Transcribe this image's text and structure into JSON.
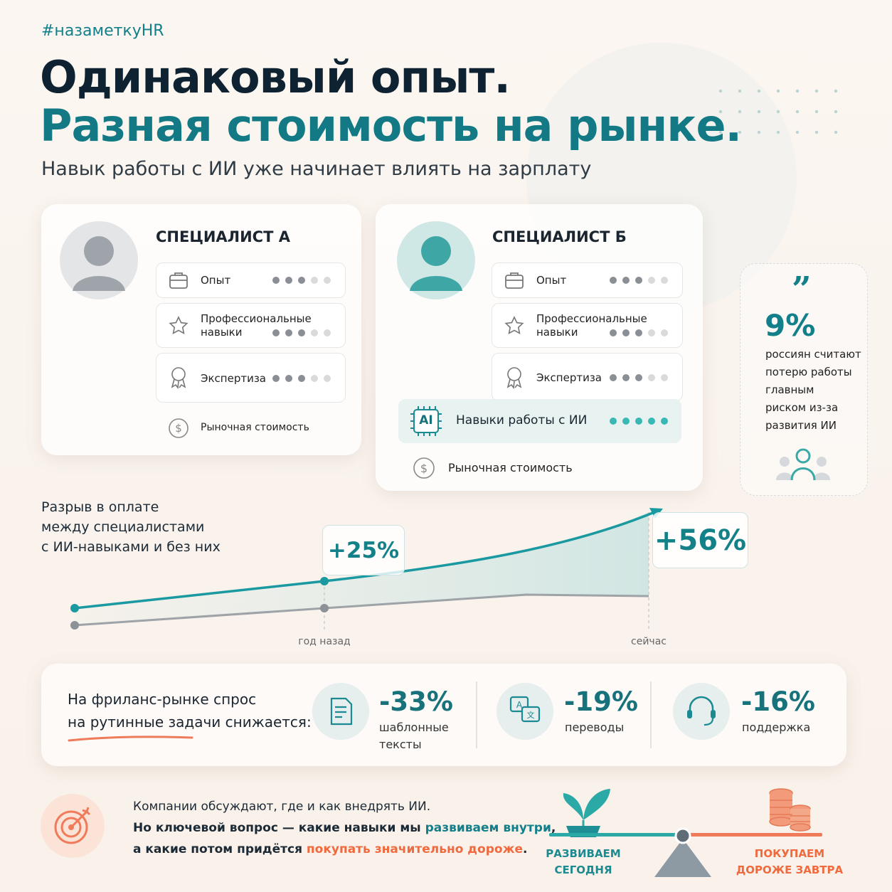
{
  "header": {
    "hashtag": "#назаметкуHR",
    "title_line1": "Одинаковый опыт.",
    "title_line2": "Разная стоимость на рынке.",
    "subtitle": "Навык работы с ИИ уже начинает влиять на зарплату"
  },
  "dot_scale": 5,
  "cards": [
    {
      "title": "СПЕЦИАЛИСТ А",
      "skills": [
        {
          "label": "Опыт",
          "level": 3
        },
        {
          "label": "Профессиональные навыки",
          "level": 3
        },
        {
          "label": "Экспертиза",
          "level": 3
        }
      ],
      "market": "Рыночная стоимость"
    },
    {
      "title": "СПЕЦИАЛИСТ Б",
      "skills": [
        {
          "label": "Опыт",
          "level": 3
        },
        {
          "label": "Профессиональные навыки",
          "level": 3
        },
        {
          "label": "Экспертиза",
          "level": 3
        }
      ],
      "ai_skill": {
        "icon": "AI",
        "label": "Навыки работы с ИИ",
        "level": 5
      },
      "market": "Рыночная стоимость"
    }
  ],
  "quote": {
    "value": "9%",
    "lines": [
      "россиян считают",
      "потерю работы",
      "главным",
      "риском из-за",
      "развития ИИ"
    ]
  },
  "gap": {
    "caption": [
      "Разрыв в оплате",
      "между специалистами",
      "с ИИ-навыками и без них"
    ],
    "points": [
      {
        "label": "+25%",
        "x_label": "год назад"
      },
      {
        "label": "+56%",
        "x_label": "сейчас"
      }
    ]
  },
  "freelance": {
    "caption": [
      "На фриланс-рынке спрос",
      "на рутинные задачи снижается:"
    ],
    "items": [
      {
        "value": "-33%",
        "label": [
          "шаблонные",
          "тексты"
        ]
      },
      {
        "value": "-19%",
        "label": [
          "переводы"
        ]
      },
      {
        "value": "-16%",
        "label": [
          "поддержка"
        ]
      }
    ]
  },
  "footer": {
    "line1": "Компании обсуждают, где и как внедрять ИИ.",
    "line2": [
      "Но ключевой вопрос — какие навыки мы ",
      "развиваем внутри",
      ","
    ],
    "line3": [
      "а какие потом придётся ",
      "покупать значительно дороже",
      "."
    ]
  },
  "balance": {
    "left": [
      "РАЗВИВАЕМ",
      "СЕГОДНЯ"
    ],
    "right": [
      "ПОКУПАЕМ",
      "ДОРОЖЕ ЗАВТРА"
    ]
  }
}
